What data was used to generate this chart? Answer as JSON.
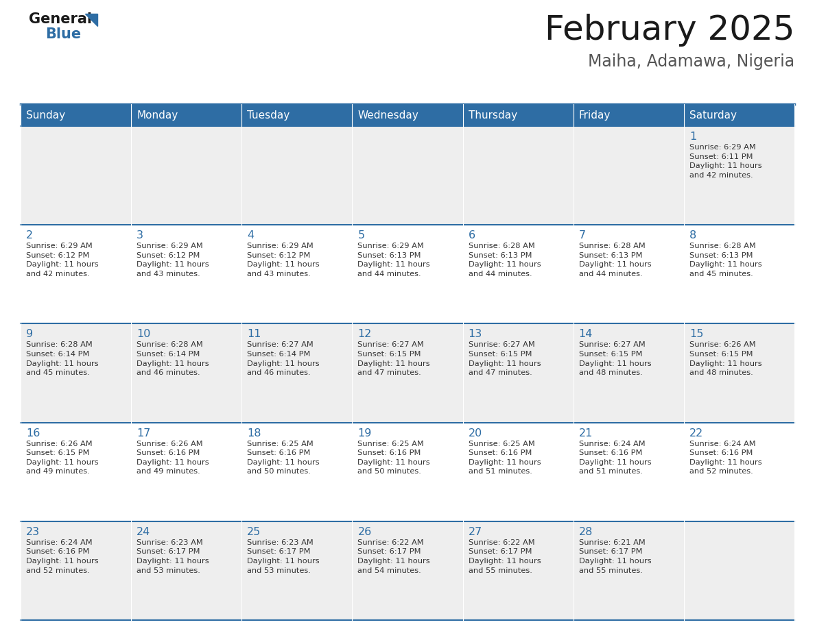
{
  "title": "February 2025",
  "subtitle": "Maiha, Adamawa, Nigeria",
  "header_color": "#2E6DA4",
  "header_text_color": "#FFFFFF",
  "row0_bg": "#EEEEEE",
  "row1_bg": "#FFFFFF",
  "day_number_color": "#2E6DA4",
  "text_color": "#333333",
  "line_color": "#2E6DA4",
  "days_of_week": [
    "Sunday",
    "Monday",
    "Tuesday",
    "Wednesday",
    "Thursday",
    "Friday",
    "Saturday"
  ],
  "weeks": [
    [
      {
        "day": 0,
        "text": ""
      },
      {
        "day": 0,
        "text": ""
      },
      {
        "day": 0,
        "text": ""
      },
      {
        "day": 0,
        "text": ""
      },
      {
        "day": 0,
        "text": ""
      },
      {
        "day": 0,
        "text": ""
      },
      {
        "day": 1,
        "text": "Sunrise: 6:29 AM\nSunset: 6:11 PM\nDaylight: 11 hours\nand 42 minutes."
      }
    ],
    [
      {
        "day": 2,
        "text": "Sunrise: 6:29 AM\nSunset: 6:12 PM\nDaylight: 11 hours\nand 42 minutes."
      },
      {
        "day": 3,
        "text": "Sunrise: 6:29 AM\nSunset: 6:12 PM\nDaylight: 11 hours\nand 43 minutes."
      },
      {
        "day": 4,
        "text": "Sunrise: 6:29 AM\nSunset: 6:12 PM\nDaylight: 11 hours\nand 43 minutes."
      },
      {
        "day": 5,
        "text": "Sunrise: 6:29 AM\nSunset: 6:13 PM\nDaylight: 11 hours\nand 44 minutes."
      },
      {
        "day": 6,
        "text": "Sunrise: 6:28 AM\nSunset: 6:13 PM\nDaylight: 11 hours\nand 44 minutes."
      },
      {
        "day": 7,
        "text": "Sunrise: 6:28 AM\nSunset: 6:13 PM\nDaylight: 11 hours\nand 44 minutes."
      },
      {
        "day": 8,
        "text": "Sunrise: 6:28 AM\nSunset: 6:13 PM\nDaylight: 11 hours\nand 45 minutes."
      }
    ],
    [
      {
        "day": 9,
        "text": "Sunrise: 6:28 AM\nSunset: 6:14 PM\nDaylight: 11 hours\nand 45 minutes."
      },
      {
        "day": 10,
        "text": "Sunrise: 6:28 AM\nSunset: 6:14 PM\nDaylight: 11 hours\nand 46 minutes."
      },
      {
        "day": 11,
        "text": "Sunrise: 6:27 AM\nSunset: 6:14 PM\nDaylight: 11 hours\nand 46 minutes."
      },
      {
        "day": 12,
        "text": "Sunrise: 6:27 AM\nSunset: 6:15 PM\nDaylight: 11 hours\nand 47 minutes."
      },
      {
        "day": 13,
        "text": "Sunrise: 6:27 AM\nSunset: 6:15 PM\nDaylight: 11 hours\nand 47 minutes."
      },
      {
        "day": 14,
        "text": "Sunrise: 6:27 AM\nSunset: 6:15 PM\nDaylight: 11 hours\nand 48 minutes."
      },
      {
        "day": 15,
        "text": "Sunrise: 6:26 AM\nSunset: 6:15 PM\nDaylight: 11 hours\nand 48 minutes."
      }
    ],
    [
      {
        "day": 16,
        "text": "Sunrise: 6:26 AM\nSunset: 6:15 PM\nDaylight: 11 hours\nand 49 minutes."
      },
      {
        "day": 17,
        "text": "Sunrise: 6:26 AM\nSunset: 6:16 PM\nDaylight: 11 hours\nand 49 minutes."
      },
      {
        "day": 18,
        "text": "Sunrise: 6:25 AM\nSunset: 6:16 PM\nDaylight: 11 hours\nand 50 minutes."
      },
      {
        "day": 19,
        "text": "Sunrise: 6:25 AM\nSunset: 6:16 PM\nDaylight: 11 hours\nand 50 minutes."
      },
      {
        "day": 20,
        "text": "Sunrise: 6:25 AM\nSunset: 6:16 PM\nDaylight: 11 hours\nand 51 minutes."
      },
      {
        "day": 21,
        "text": "Sunrise: 6:24 AM\nSunset: 6:16 PM\nDaylight: 11 hours\nand 51 minutes."
      },
      {
        "day": 22,
        "text": "Sunrise: 6:24 AM\nSunset: 6:16 PM\nDaylight: 11 hours\nand 52 minutes."
      }
    ],
    [
      {
        "day": 23,
        "text": "Sunrise: 6:24 AM\nSunset: 6:16 PM\nDaylight: 11 hours\nand 52 minutes."
      },
      {
        "day": 24,
        "text": "Sunrise: 6:23 AM\nSunset: 6:17 PM\nDaylight: 11 hours\nand 53 minutes."
      },
      {
        "day": 25,
        "text": "Sunrise: 6:23 AM\nSunset: 6:17 PM\nDaylight: 11 hours\nand 53 minutes."
      },
      {
        "day": 26,
        "text": "Sunrise: 6:22 AM\nSunset: 6:17 PM\nDaylight: 11 hours\nand 54 minutes."
      },
      {
        "day": 27,
        "text": "Sunrise: 6:22 AM\nSunset: 6:17 PM\nDaylight: 11 hours\nand 55 minutes."
      },
      {
        "day": 28,
        "text": "Sunrise: 6:21 AM\nSunset: 6:17 PM\nDaylight: 11 hours\nand 55 minutes."
      },
      {
        "day": 0,
        "text": ""
      }
    ]
  ]
}
